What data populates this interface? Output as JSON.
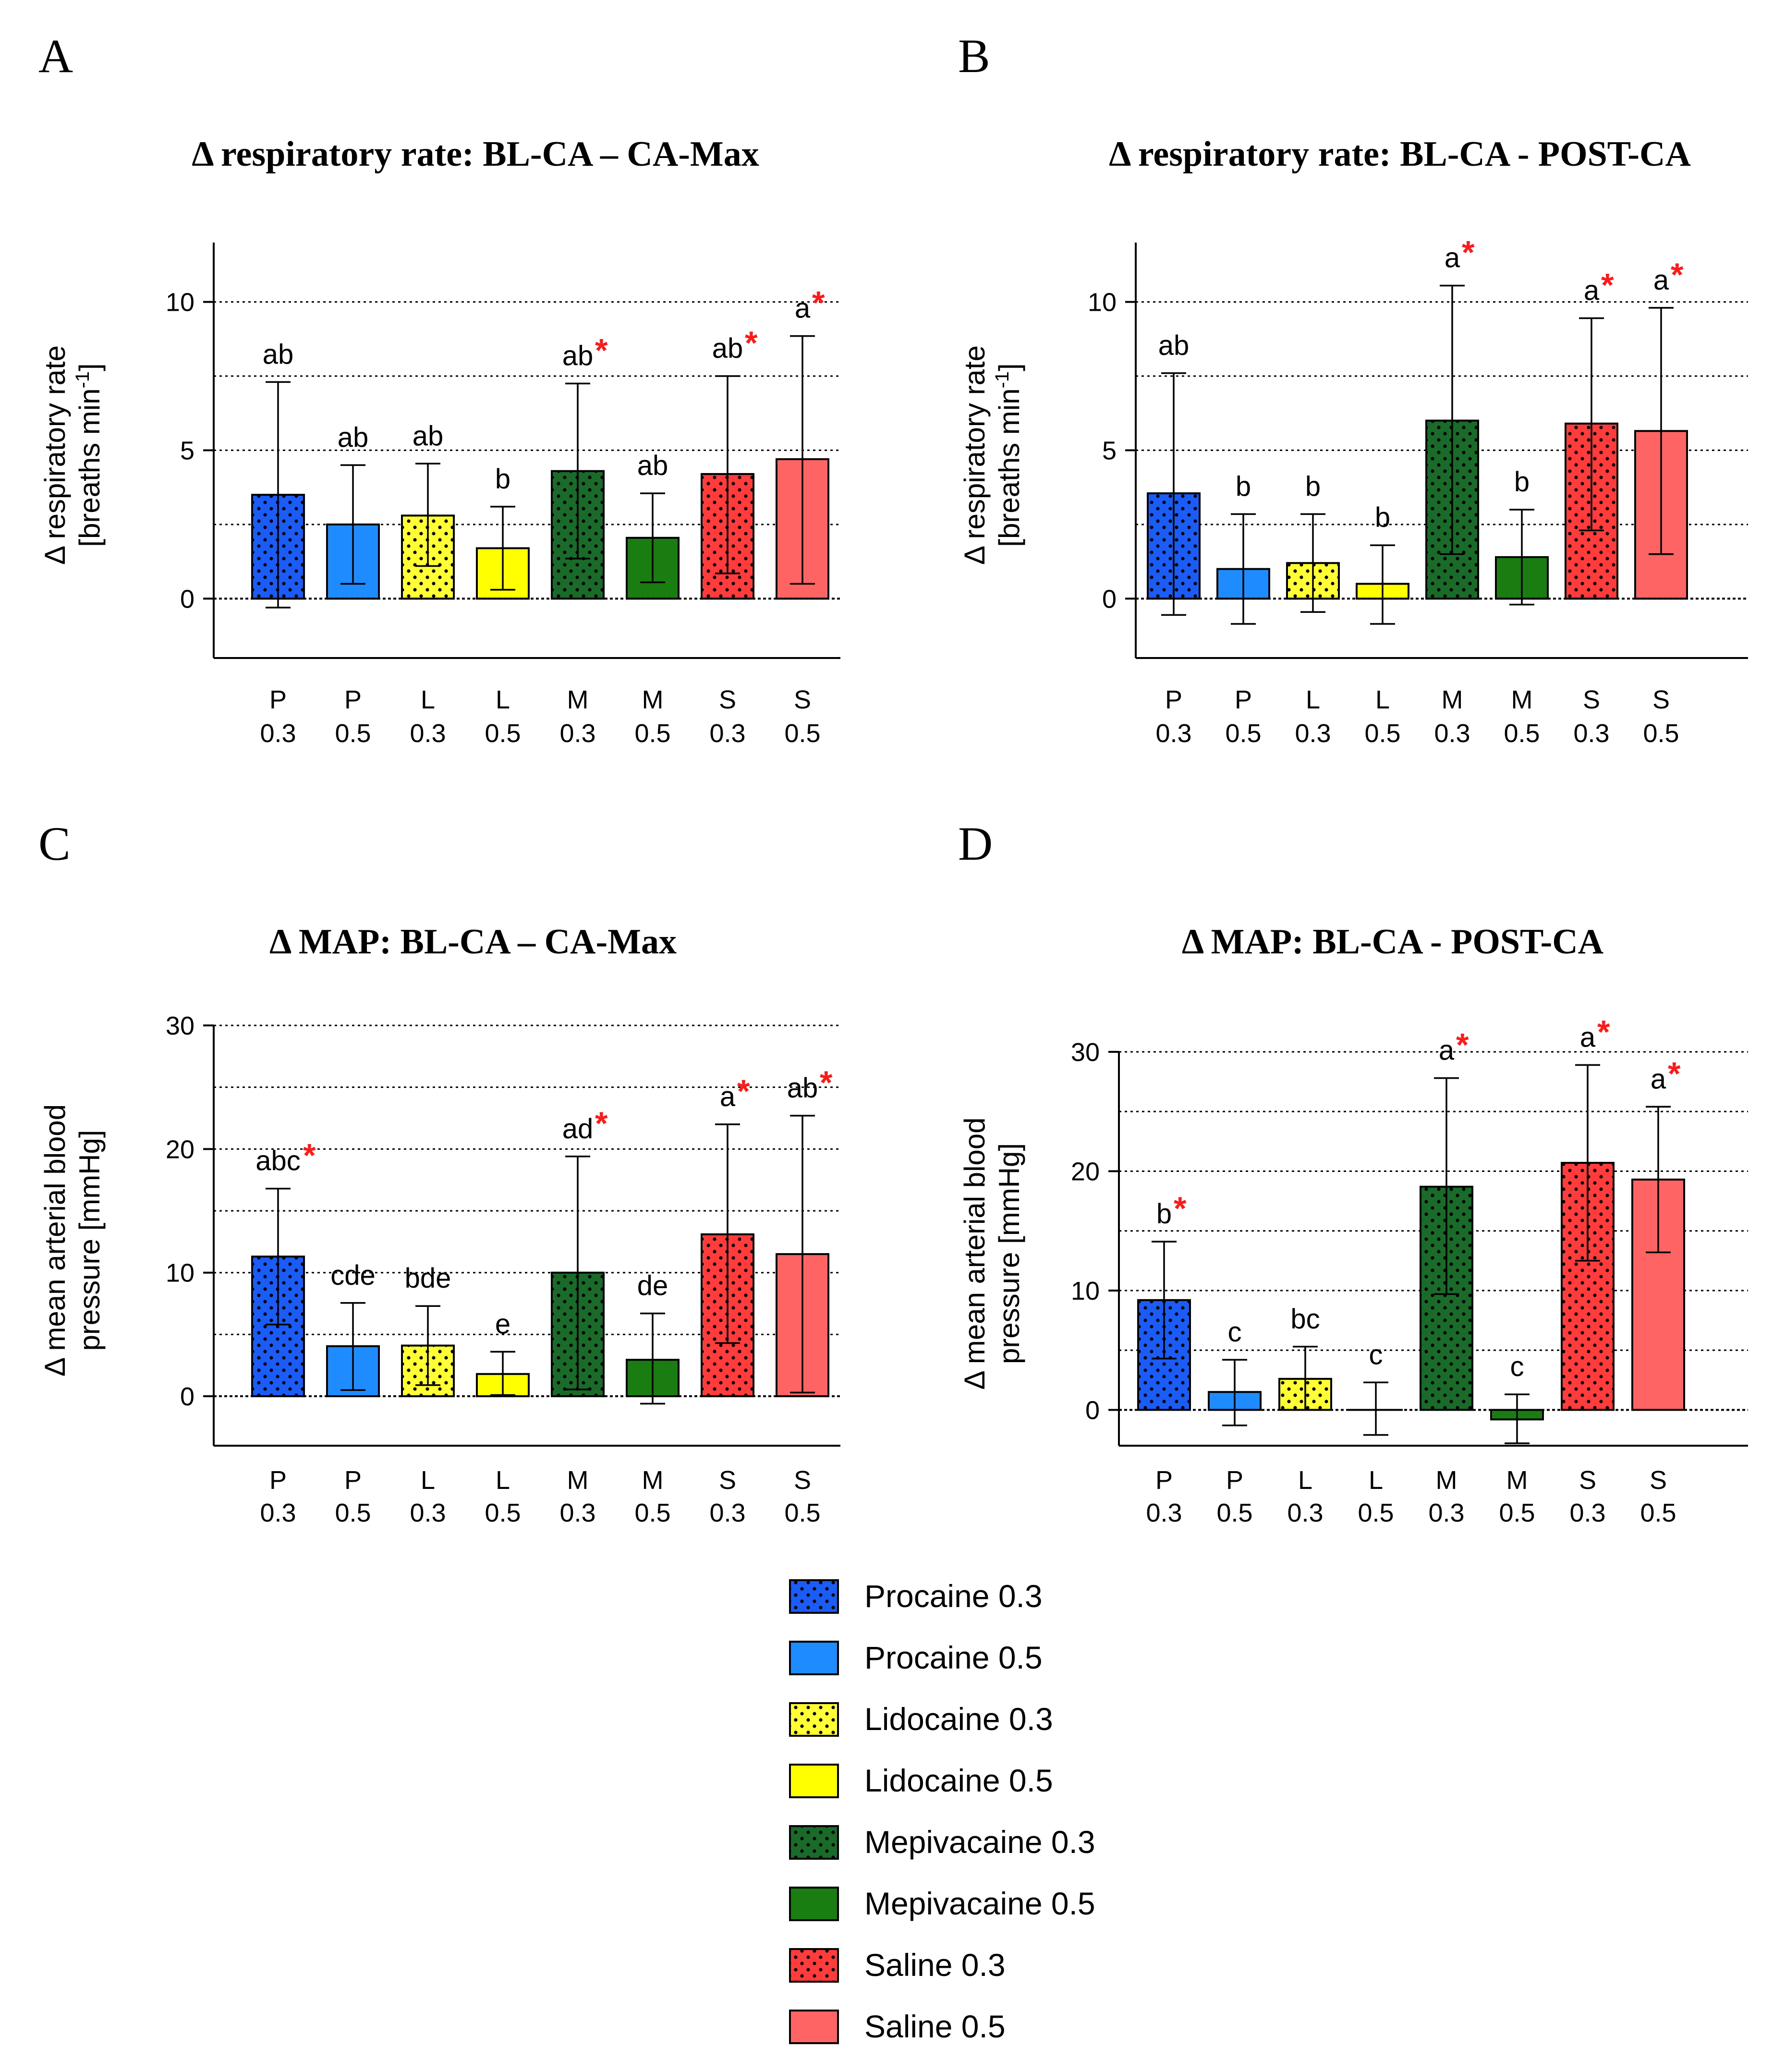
{
  "panel_letters": [
    "A",
    "B",
    "C",
    "D"
  ],
  "categories": [
    {
      "line1": "P",
      "line2": "0.3"
    },
    {
      "line1": "P",
      "line2": "0.5"
    },
    {
      "line1": "L",
      "line2": "0.3"
    },
    {
      "line1": "L",
      "line2": "0.5"
    },
    {
      "line1": "M",
      "line2": "0.3"
    },
    {
      "line1": "M",
      "line2": "0.5"
    },
    {
      "line1": "S",
      "line2": "0.3"
    },
    {
      "line1": "S",
      "line2": "0.5"
    }
  ],
  "groups": [
    {
      "name": "Procaine 0.3",
      "color": "#1a5cf5",
      "dotted": true
    },
    {
      "name": "Procaine 0.5",
      "color": "#1e8cff",
      "dotted": false
    },
    {
      "name": "Lidocaine 0.3",
      "color": "#ffff33",
      "dotted": true
    },
    {
      "name": "Lidocaine 0.5",
      "color": "#ffff00",
      "dotted": false
    },
    {
      "name": "Mepivacaine 0.3",
      "color": "#1a6b2a",
      "dotted": true
    },
    {
      "name": "Mepivacaine 0.5",
      "color": "#1a7d12",
      "dotted": false
    },
    {
      "name": "Saline 0.3",
      "color": "#ff3b3b",
      "dotted": true
    },
    {
      "name": "Saline 0.5",
      "color": "#ff6464",
      "dotted": false
    }
  ],
  "chart_data": [
    {
      "panel": "A",
      "type": "bar",
      "title": "Δ respiratory rate: BL-CA – CA-Max",
      "ylabel_line1": "Δ respiratory rate",
      "ylabel_line2": "[breaths min",
      "ylabel_sup": "-1",
      "ylabel_end": "]",
      "ylim": [
        -2,
        12
      ],
      "yticks": [
        0,
        5,
        10
      ],
      "grid": [
        2.5,
        5,
        7.5,
        10
      ],
      "values": [
        3.5,
        2.5,
        2.8,
        1.7,
        4.3,
        2.05,
        4.2,
        4.7
      ],
      "err_low": [
        -0.3,
        0.5,
        1.1,
        0.3,
        1.35,
        0.55,
        0.85,
        0.5
      ],
      "err_high": [
        7.3,
        4.5,
        4.55,
        3.1,
        7.25,
        3.55,
        7.5,
        8.85
      ],
      "labels": [
        "ab",
        "ab",
        "ab",
        "b",
        "ab",
        "ab",
        "ab",
        "a"
      ],
      "stars": [
        false,
        false,
        false,
        false,
        true,
        false,
        true,
        true
      ]
    },
    {
      "panel": "B",
      "type": "bar",
      "title": "Δ respiratory rate: BL-CA - POST-CA",
      "ylabel_line1": "Δ respiratory rate",
      "ylabel_line2": "[breaths min",
      "ylabel_sup": "-1",
      "ylabel_end": "]",
      "ylim": [
        -2,
        12
      ],
      "yticks": [
        0,
        5,
        10
      ],
      "grid": [
        2.5,
        5,
        7.5,
        10
      ],
      "values": [
        3.55,
        1.0,
        1.2,
        0.5,
        6.0,
        1.4,
        5.9,
        5.65
      ],
      "err_low": [
        -0.55,
        -0.85,
        -0.45,
        -0.85,
        1.5,
        -0.2,
        2.3,
        1.5
      ],
      "err_high": [
        7.6,
        2.85,
        2.85,
        1.8,
        10.55,
        3.0,
        9.45,
        9.8
      ],
      "labels": [
        "ab",
        "b",
        "b",
        "b",
        "a",
        "b",
        "a",
        "a"
      ],
      "stars": [
        false,
        false,
        false,
        false,
        true,
        false,
        true,
        true
      ]
    },
    {
      "panel": "C",
      "type": "bar",
      "title": "Δ MAP: BL-CA – CA-Max",
      "ylabel_line1": "Δ mean arterial blood",
      "ylabel_line2": "pressure [mmHg]",
      "ylabel_sup": "",
      "ylabel_end": "",
      "ylim": [
        -4,
        30
      ],
      "yticks": [
        0,
        10,
        20,
        30
      ],
      "grid": [
        5,
        10,
        15,
        20,
        25,
        30
      ],
      "values": [
        11.3,
        4.05,
        4.1,
        1.8,
        10.0,
        2.95,
        13.1,
        11.5
      ],
      "err_low": [
        5.8,
        0.5,
        0.9,
        0.1,
        0.55,
        -0.6,
        4.3,
        0.3
      ],
      "err_high": [
        16.8,
        7.55,
        7.3,
        3.6,
        19.4,
        6.7,
        22.0,
        22.7
      ],
      "labels": [
        "abc",
        "cde",
        "bde",
        "e",
        "ad",
        "de",
        "a",
        "ab"
      ],
      "stars": [
        true,
        false,
        false,
        false,
        true,
        false,
        true,
        true
      ]
    },
    {
      "panel": "D",
      "type": "bar",
      "title": "Δ MAP:    BL-CA - POST-CA",
      "ylabel_line1": "Δ mean arterial blood",
      "ylabel_line2": "pressure [mmHg]",
      "ylabel_sup": "",
      "ylabel_end": "",
      "ylim": [
        -3,
        30
      ],
      "yticks": [
        0,
        10,
        20,
        30
      ],
      "grid": [
        5,
        10,
        15,
        20,
        25,
        30
      ],
      "values": [
        9.2,
        1.5,
        2.6,
        0.0,
        18.7,
        -0.8,
        20.7,
        19.3
      ],
      "err_low": [
        4.3,
        -1.3,
        0.0,
        -2.1,
        9.7,
        -2.8,
        12.5,
        13.2
      ],
      "err_high": [
        14.1,
        4.2,
        5.3,
        2.3,
        27.8,
        1.3,
        28.9,
        25.4
      ],
      "labels": [
        "b",
        "c",
        "bc",
        "c",
        "a",
        "c",
        "a",
        "a"
      ],
      "stars": [
        true,
        false,
        false,
        false,
        true,
        false,
        true,
        true
      ]
    }
  ]
}
